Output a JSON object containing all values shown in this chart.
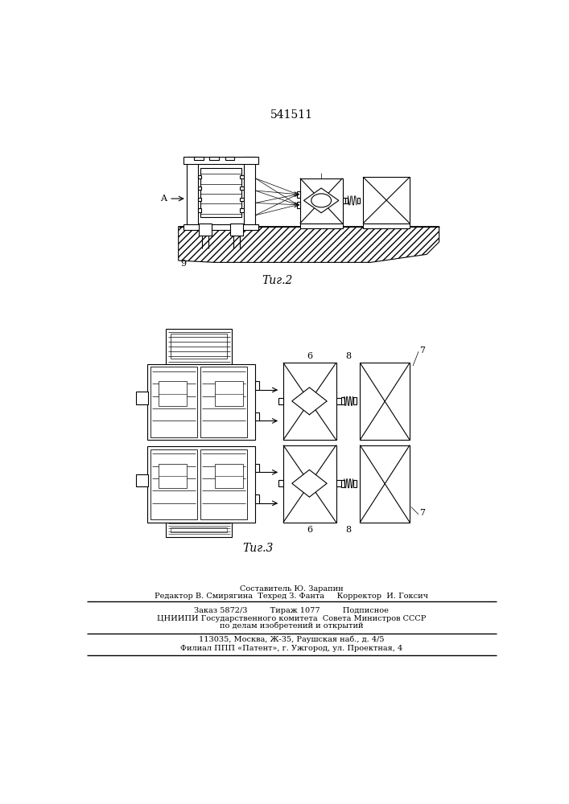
{
  "title": "541511",
  "fig2_caption": "Τиг.2",
  "fig3_caption": "Τиг.3",
  "label_A": "A",
  "label_9": "9",
  "label_6_top": "6",
  "label_8_top": "8",
  "label_7_top": "7",
  "label_6_bot": "6",
  "label_8_bot": "8",
  "label_7_bot": "7",
  "footer_line1": "Составитель Ю. Зарапин",
  "footer_line2": "Редактор В. Смирягина  Техред З. Фанта     Корректор  И. Гоксич",
  "footer_line3": "Заказ 5872/3         Тираж 1077         Подписное",
  "footer_line4": "ЦНИИПИ Государственного комитета  Совета Министров СССР",
  "footer_line5": "по делам изобретений и открытий",
  "footer_line6": "113035, Москва, Ж-35, Раушская наб., д. 4/5",
  "footer_line7": "Филиал ППП «Патент», г. Ужгород, ул. Проектная, 4",
  "bg_color": "#ffffff",
  "line_color": "#000000"
}
